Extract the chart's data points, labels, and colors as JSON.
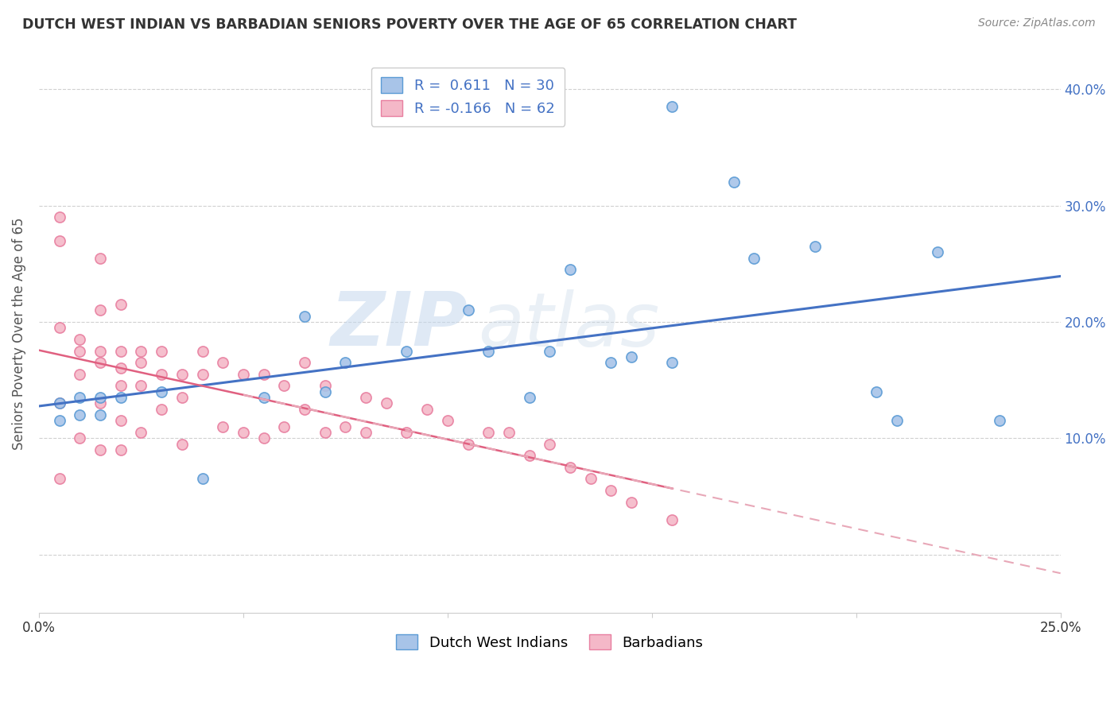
{
  "title": "DUTCH WEST INDIAN VS BARBADIAN SENIORS POVERTY OVER THE AGE OF 65 CORRELATION CHART",
  "source": "Source: ZipAtlas.com",
  "ylabel": "Seniors Poverty Over the Age of 65",
  "x_min": 0.0,
  "x_max": 0.25,
  "y_min": -0.05,
  "y_max": 0.43,
  "x_ticks": [
    0.0,
    0.05,
    0.1,
    0.15,
    0.2,
    0.25
  ],
  "x_tick_labels": [
    "0.0%",
    "",
    "",
    "",
    "",
    "25.0%"
  ],
  "y_ticks_right": [
    0.0,
    0.1,
    0.2,
    0.3,
    0.4
  ],
  "y_tick_labels_right": [
    "",
    "10.0%",
    "20.0%",
    "30.0%",
    "40.0%"
  ],
  "blue_scatter_x": [
    0.155,
    0.17,
    0.005,
    0.005,
    0.01,
    0.01,
    0.015,
    0.015,
    0.02,
    0.03,
    0.04,
    0.055,
    0.065,
    0.07,
    0.075,
    0.09,
    0.105,
    0.11,
    0.12,
    0.125,
    0.13,
    0.14,
    0.145,
    0.155,
    0.175,
    0.19,
    0.205,
    0.21,
    0.22,
    0.235
  ],
  "blue_scatter_y": [
    0.385,
    0.32,
    0.13,
    0.115,
    0.135,
    0.12,
    0.135,
    0.12,
    0.135,
    0.14,
    0.065,
    0.135,
    0.205,
    0.14,
    0.165,
    0.175,
    0.21,
    0.175,
    0.135,
    0.175,
    0.245,
    0.165,
    0.17,
    0.165,
    0.255,
    0.265,
    0.14,
    0.115,
    0.26,
    0.115
  ],
  "pink_scatter_x": [
    0.005,
    0.005,
    0.005,
    0.005,
    0.005,
    0.01,
    0.01,
    0.01,
    0.01,
    0.015,
    0.015,
    0.015,
    0.015,
    0.015,
    0.015,
    0.02,
    0.02,
    0.02,
    0.02,
    0.02,
    0.02,
    0.025,
    0.025,
    0.025,
    0.025,
    0.03,
    0.03,
    0.03,
    0.035,
    0.035,
    0.035,
    0.04,
    0.04,
    0.045,
    0.045,
    0.05,
    0.05,
    0.055,
    0.055,
    0.06,
    0.06,
    0.065,
    0.065,
    0.07,
    0.07,
    0.075,
    0.08,
    0.08,
    0.085,
    0.09,
    0.095,
    0.1,
    0.105,
    0.11,
    0.115,
    0.12,
    0.125,
    0.13,
    0.135,
    0.14,
    0.145,
    0.155
  ],
  "pink_scatter_y": [
    0.29,
    0.27,
    0.195,
    0.13,
    0.065,
    0.185,
    0.175,
    0.155,
    0.1,
    0.255,
    0.21,
    0.175,
    0.165,
    0.13,
    0.09,
    0.215,
    0.175,
    0.16,
    0.145,
    0.115,
    0.09,
    0.175,
    0.165,
    0.145,
    0.105,
    0.175,
    0.155,
    0.125,
    0.155,
    0.135,
    0.095,
    0.175,
    0.155,
    0.165,
    0.11,
    0.155,
    0.105,
    0.155,
    0.1,
    0.145,
    0.11,
    0.165,
    0.125,
    0.145,
    0.105,
    0.11,
    0.135,
    0.105,
    0.13,
    0.105,
    0.125,
    0.115,
    0.095,
    0.105,
    0.105,
    0.085,
    0.095,
    0.075,
    0.065,
    0.055,
    0.045,
    0.03
  ],
  "blue_color": "#a8c4e8",
  "blue_edge_color": "#5b9bd5",
  "pink_color": "#f4b8c8",
  "pink_edge_color": "#e87fa0",
  "blue_line_color": "#4472c4",
  "pink_solid_color": "#e06080",
  "pink_dash_color": "#e8a8b8",
  "R_blue": 0.611,
  "N_blue": 30,
  "R_pink": -0.166,
  "N_pink": 62,
  "legend_labels": [
    "Dutch West Indians",
    "Barbadians"
  ],
  "watermark_top": "ZIP",
  "watermark_bottom": "atlas",
  "background_color": "#ffffff",
  "grid_color": "#d0d0d0"
}
